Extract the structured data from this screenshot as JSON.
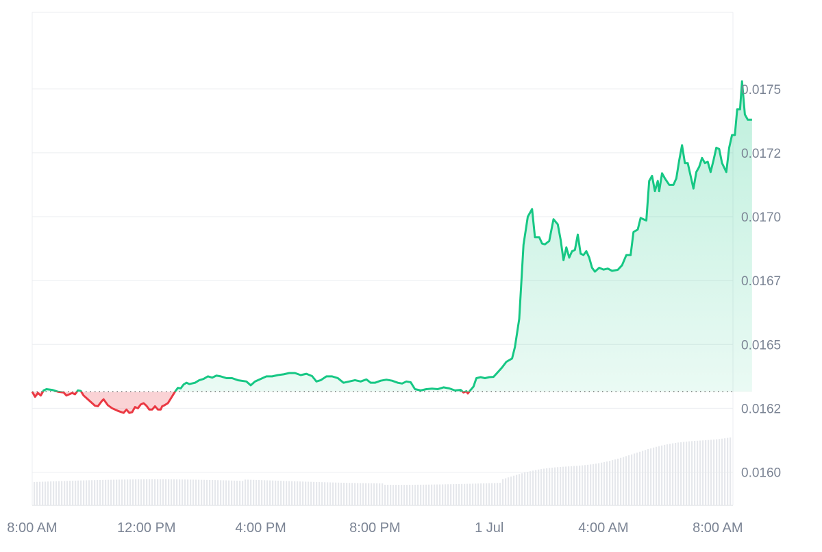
{
  "chart_data": {
    "type": "area",
    "title": "",
    "xlabel": "",
    "ylabel": "",
    "ylim": [
      0.01587,
      0.0178
    ],
    "baseline": 0.016315,
    "grid": true,
    "legend": "none",
    "colors": {
      "up": "#16c784",
      "down": "#ea3943",
      "grid": "#ebedf0",
      "axis": "#7b8494",
      "volume": "#e6e8ec"
    },
    "y_ticks": [
      "0.0175",
      "0.0172",
      "0.0170",
      "0.0167",
      "0.0165",
      "0.0162",
      "0.0160"
    ],
    "y_tick_values": [
      0.0175,
      0.01725,
      0.017,
      0.01675,
      0.0165,
      0.01625,
      0.016
    ],
    "x_ticks": [
      "8:00 AM",
      "12:00 PM",
      "4:00 PM",
      "8:00 PM",
      "1 Jul",
      "4:00 AM",
      "8:00 AM"
    ],
    "x_tick_hours": [
      0,
      4,
      8,
      12,
      16,
      20,
      24
    ],
    "x_range_hours": [
      0,
      24.5
    ],
    "series": [
      {
        "points": [
          [
            0.0,
            0.016315
          ],
          [
            0.1,
            0.016295
          ],
          [
            0.2,
            0.01631
          ],
          [
            0.3,
            0.0163
          ],
          [
            0.4,
            0.01632
          ],
          [
            0.5,
            0.016325
          ],
          [
            0.7,
            0.016322
          ],
          [
            0.9,
            0.016315
          ],
          [
            1.1,
            0.016312
          ],
          [
            1.2,
            0.0163
          ],
          [
            1.4,
            0.01631
          ],
          [
            1.5,
            0.016305
          ],
          [
            1.6,
            0.01632
          ],
          [
            1.7,
            0.016318
          ],
          [
            1.8,
            0.0163
          ],
          [
            1.9,
            0.01629
          ],
          [
            2.1,
            0.01627
          ],
          [
            2.2,
            0.01626
          ],
          [
            2.3,
            0.016258
          ],
          [
            2.45,
            0.01628
          ],
          [
            2.5,
            0.016285
          ],
          [
            2.65,
            0.016262
          ],
          [
            2.8,
            0.01625
          ],
          [
            3.0,
            0.01624
          ],
          [
            3.2,
            0.016232
          ],
          [
            3.3,
            0.016245
          ],
          [
            3.4,
            0.016232
          ],
          [
            3.5,
            0.016235
          ],
          [
            3.6,
            0.016255
          ],
          [
            3.7,
            0.01625
          ],
          [
            3.8,
            0.016265
          ],
          [
            3.9,
            0.01627
          ],
          [
            4.0,
            0.01626
          ],
          [
            4.1,
            0.016245
          ],
          [
            4.2,
            0.016245
          ],
          [
            4.3,
            0.016258
          ],
          [
            4.4,
            0.016245
          ],
          [
            4.5,
            0.016245
          ],
          [
            4.55,
            0.016258
          ],
          [
            4.6,
            0.01626
          ],
          [
            4.75,
            0.01627
          ],
          [
            4.85,
            0.016288
          ],
          [
            5.0,
            0.016315
          ],
          [
            5.1,
            0.01633
          ],
          [
            5.2,
            0.016328
          ],
          [
            5.3,
            0.016343
          ],
          [
            5.4,
            0.01635
          ],
          [
            5.5,
            0.016345
          ],
          [
            5.7,
            0.01635
          ],
          [
            5.85,
            0.01636
          ],
          [
            6.0,
            0.016365
          ],
          [
            6.15,
            0.016375
          ],
          [
            6.3,
            0.01637
          ],
          [
            6.45,
            0.016378
          ],
          [
            6.6,
            0.016375
          ],
          [
            6.8,
            0.016368
          ],
          [
            7.0,
            0.016368
          ],
          [
            7.2,
            0.01636
          ],
          [
            7.5,
            0.016355
          ],
          [
            7.65,
            0.01634
          ],
          [
            7.8,
            0.016355
          ],
          [
            8.0,
            0.016365
          ],
          [
            8.2,
            0.016375
          ],
          [
            8.4,
            0.016375
          ],
          [
            8.6,
            0.01638
          ],
          [
            8.8,
            0.016383
          ],
          [
            9.0,
            0.016388
          ],
          [
            9.2,
            0.016388
          ],
          [
            9.4,
            0.01638
          ],
          [
            9.6,
            0.016385
          ],
          [
            9.8,
            0.016376
          ],
          [
            9.95,
            0.016355
          ],
          [
            10.1,
            0.01636
          ],
          [
            10.3,
            0.016375
          ],
          [
            10.5,
            0.016375
          ],
          [
            10.7,
            0.016368
          ],
          [
            10.9,
            0.01635
          ],
          [
            11.1,
            0.016355
          ],
          [
            11.3,
            0.01636
          ],
          [
            11.5,
            0.016355
          ],
          [
            11.7,
            0.016363
          ],
          [
            11.85,
            0.01635
          ],
          [
            12.0,
            0.01635
          ],
          [
            12.2,
            0.016358
          ],
          [
            12.4,
            0.016362
          ],
          [
            12.6,
            0.016358
          ],
          [
            12.8,
            0.01635
          ],
          [
            12.95,
            0.016347
          ],
          [
            13.1,
            0.016355
          ],
          [
            13.25,
            0.016352
          ],
          [
            13.4,
            0.016325
          ],
          [
            13.6,
            0.01632
          ],
          [
            13.8,
            0.016325
          ],
          [
            14.0,
            0.016327
          ],
          [
            14.2,
            0.016325
          ],
          [
            14.4,
            0.016332
          ],
          [
            14.6,
            0.016328
          ],
          [
            14.8,
            0.01632
          ],
          [
            15.0,
            0.016322
          ],
          [
            15.1,
            0.016312
          ],
          [
            15.2,
            0.016317
          ],
          [
            15.25,
            0.016308
          ],
          [
            15.35,
            0.016322
          ],
          [
            15.45,
            0.016335
          ],
          [
            15.55,
            0.016368
          ],
          [
            15.7,
            0.016372
          ],
          [
            15.85,
            0.016368
          ],
          [
            16.0,
            0.016372
          ],
          [
            16.15,
            0.016373
          ],
          [
            16.25,
            0.016385
          ],
          [
            16.45,
            0.01641
          ],
          [
            16.6,
            0.016432
          ],
          [
            16.8,
            0.016445
          ],
          [
            16.9,
            0.01649
          ],
          [
            17.05,
            0.0166
          ],
          [
            17.2,
            0.01689
          ],
          [
            17.35,
            0.017
          ],
          [
            17.5,
            0.01703
          ],
          [
            17.6,
            0.01692
          ],
          [
            17.75,
            0.01692
          ],
          [
            17.85,
            0.016895
          ],
          [
            17.95,
            0.016892
          ],
          [
            18.1,
            0.016905
          ],
          [
            18.25,
            0.01699
          ],
          [
            18.4,
            0.01697
          ],
          [
            18.5,
            0.01691
          ],
          [
            18.6,
            0.01683
          ],
          [
            18.7,
            0.01688
          ],
          [
            18.8,
            0.01684
          ],
          [
            18.9,
            0.016865
          ],
          [
            19.0,
            0.01687
          ],
          [
            19.1,
            0.01693
          ],
          [
            19.2,
            0.016855
          ],
          [
            19.3,
            0.01685
          ],
          [
            19.4,
            0.016865
          ],
          [
            19.5,
            0.01684
          ],
          [
            19.6,
            0.0168
          ],
          [
            19.7,
            0.016785
          ],
          [
            19.85,
            0.0168
          ],
          [
            20.0,
            0.016793
          ],
          [
            20.15,
            0.016797
          ],
          [
            20.3,
            0.016788
          ],
          [
            20.5,
            0.016792
          ],
          [
            20.65,
            0.01681
          ],
          [
            20.8,
            0.01685
          ],
          [
            20.95,
            0.01685
          ],
          [
            21.05,
            0.01694
          ],
          [
            21.2,
            0.01695
          ],
          [
            21.3,
            0.016995
          ],
          [
            21.5,
            0.016985
          ],
          [
            21.6,
            0.01714
          ],
          [
            21.7,
            0.01716
          ],
          [
            21.8,
            0.0171
          ],
          [
            21.9,
            0.01714
          ],
          [
            21.95,
            0.0171
          ],
          [
            22.05,
            0.01717
          ],
          [
            22.15,
            0.01715
          ],
          [
            22.3,
            0.017125
          ],
          [
            22.45,
            0.017125
          ],
          [
            22.55,
            0.01715
          ],
          [
            22.65,
            0.01722
          ],
          [
            22.75,
            0.01728
          ],
          [
            22.85,
            0.01721
          ],
          [
            22.95,
            0.01721
          ],
          [
            23.05,
            0.01716
          ],
          [
            23.15,
            0.01711
          ],
          [
            23.25,
            0.017175
          ],
          [
            23.35,
            0.017195
          ],
          [
            23.45,
            0.01723
          ],
          [
            23.55,
            0.01721
          ],
          [
            23.65,
            0.017215
          ],
          [
            23.75,
            0.017175
          ],
          [
            23.85,
            0.01722
          ],
          [
            23.95,
            0.01727
          ],
          [
            24.05,
            0.017265
          ],
          [
            24.15,
            0.01721
          ],
          [
            24.3,
            0.017175
          ],
          [
            24.4,
            0.01727
          ],
          [
            24.5,
            0.01732
          ],
          [
            24.6,
            0.01732
          ],
          [
            24.68,
            0.01742
          ],
          [
            24.78,
            0.01742
          ],
          [
            24.85,
            0.01753
          ],
          [
            24.95,
            0.0174
          ],
          [
            25.05,
            0.01738
          ],
          [
            25.2,
            0.01738
          ]
        ]
      }
    ]
  }
}
